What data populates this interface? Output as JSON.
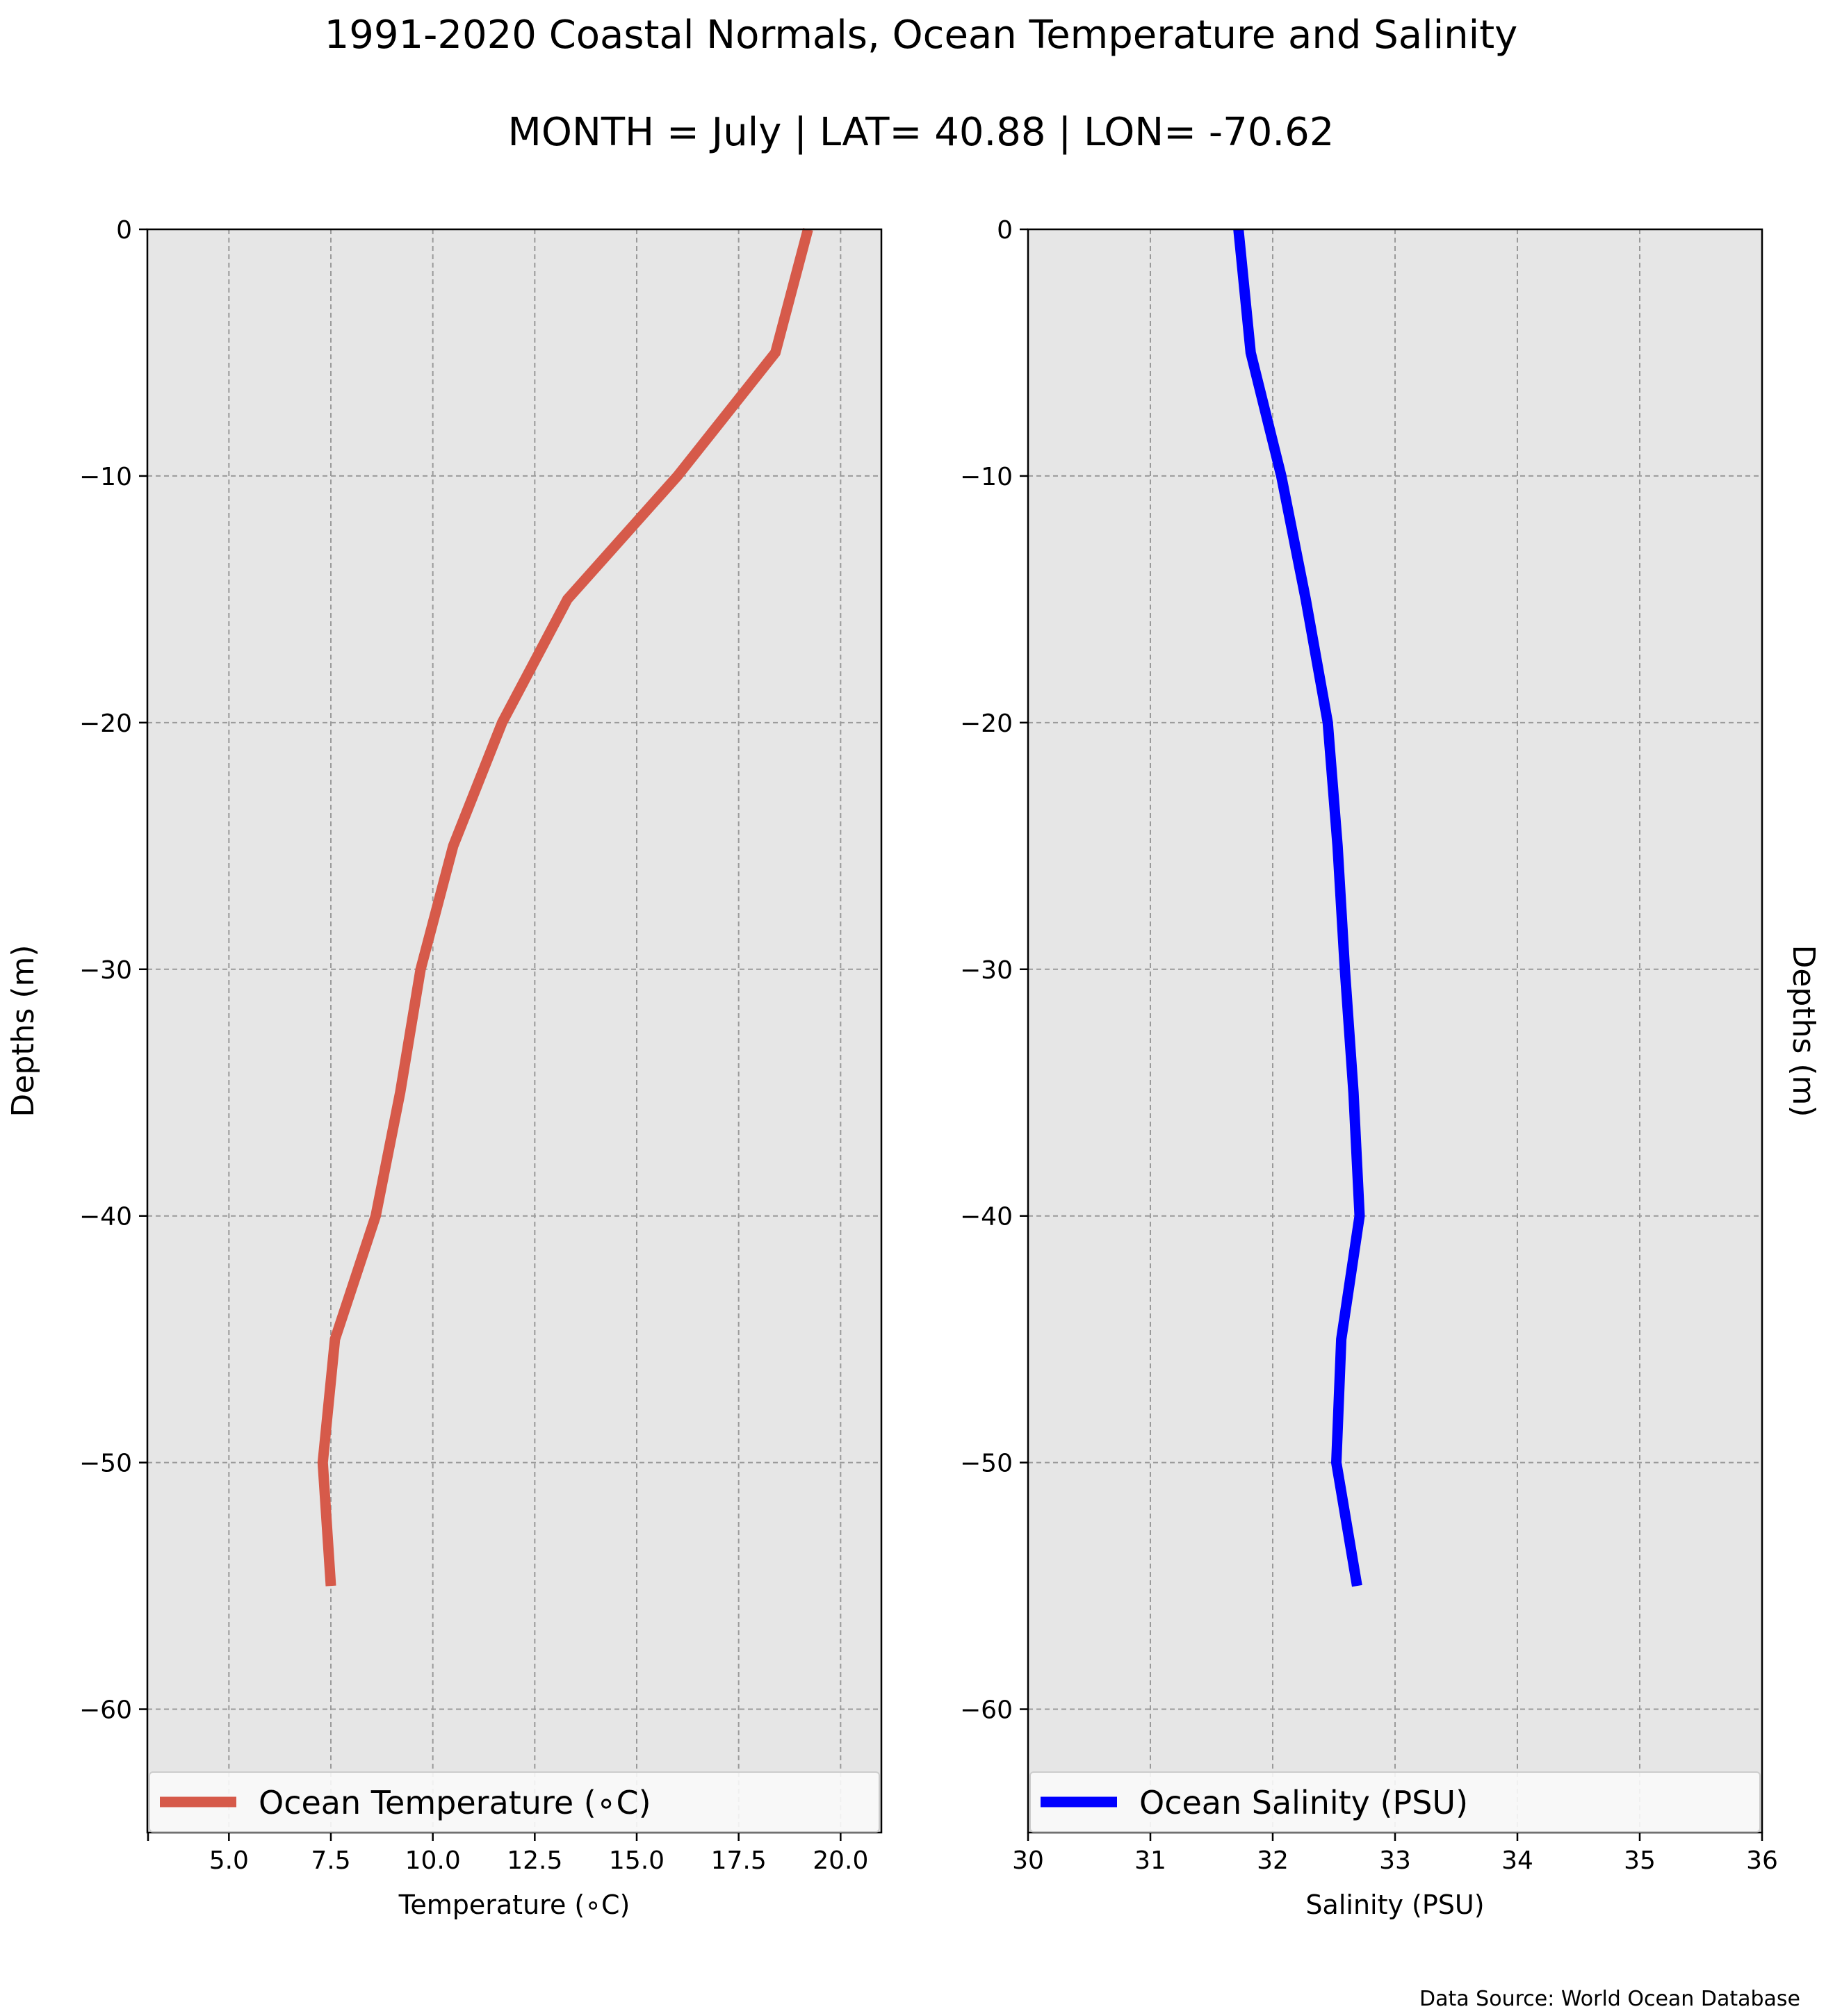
{
  "title": "1991-2020 Coastal Normals, Ocean Temperature and Salinity",
  "subtitle": "MONTH = July | LAT= 40.88 | LON= -70.62",
  "source": "Data Source: World Ocean Database",
  "colors": {
    "temperature_line": "#d65a4a",
    "salinity_line": "#0000ff",
    "plot_background": "#e6e6e6",
    "grid": "#9a9a9a"
  },
  "chart_data": [
    {
      "type": "line",
      "xlabel": "Temperature ($^\\circ$C)",
      "xlabel_display": "Temperature (∘C)",
      "ylabel": "Depths (m)",
      "xlim": [
        3.0,
        21.0
      ],
      "ylim": [
        -65,
        0
      ],
      "xticks": [
        5.0,
        7.5,
        10.0,
        12.5,
        15.0,
        17.5,
        20.0
      ],
      "xtick_labels": [
        "5.0",
        "7.5",
        "10.0",
        "12.5",
        "15.0",
        "17.5",
        "20.0"
      ],
      "yticks": [
        0,
        -10,
        -20,
        -30,
        -40,
        -50,
        -60
      ],
      "ytick_labels": [
        "0",
        "−10",
        "−20",
        "−30",
        "−40",
        "−50",
        "−60"
      ],
      "grid": true,
      "legend": "lower center",
      "series": [
        {
          "name": "Ocean Temperature (∘C)",
          "x": [
            19.2,
            18.4,
            16.0,
            13.3,
            11.7,
            10.5,
            9.7,
            9.2,
            8.6,
            7.6,
            7.3,
            7.5
          ],
          "y": [
            0,
            -5,
            -10,
            -15,
            -20,
            -25,
            -30,
            -35,
            -40,
            -45,
            -50,
            -55
          ]
        }
      ]
    },
    {
      "type": "line",
      "xlabel": "Salinity (PSU)",
      "ylabel": "Depths (m)",
      "xlim": [
        30,
        36
      ],
      "ylim": [
        -65,
        0
      ],
      "xticks": [
        30,
        31,
        32,
        33,
        34,
        35,
        36
      ],
      "xtick_labels": [
        "30",
        "31",
        "32",
        "33",
        "34",
        "35",
        "36"
      ],
      "yticks": [
        0,
        -10,
        -20,
        -30,
        -40,
        -50,
        -60
      ],
      "ytick_labels": [
        "0",
        "−10",
        "−20",
        "−30",
        "−40",
        "−50",
        "−60"
      ],
      "grid": true,
      "legend": "lower center",
      "series": [
        {
          "name": "Ocean Salinity (PSU)",
          "x": [
            31.72,
            31.82,
            32.07,
            32.27,
            32.45,
            32.53,
            32.59,
            32.66,
            32.71,
            32.56,
            32.52,
            32.69
          ],
          "y": [
            0,
            -5,
            -10,
            -15,
            -20,
            -25,
            -30,
            -35,
            -40,
            -45,
            -50,
            -55
          ]
        }
      ]
    }
  ]
}
